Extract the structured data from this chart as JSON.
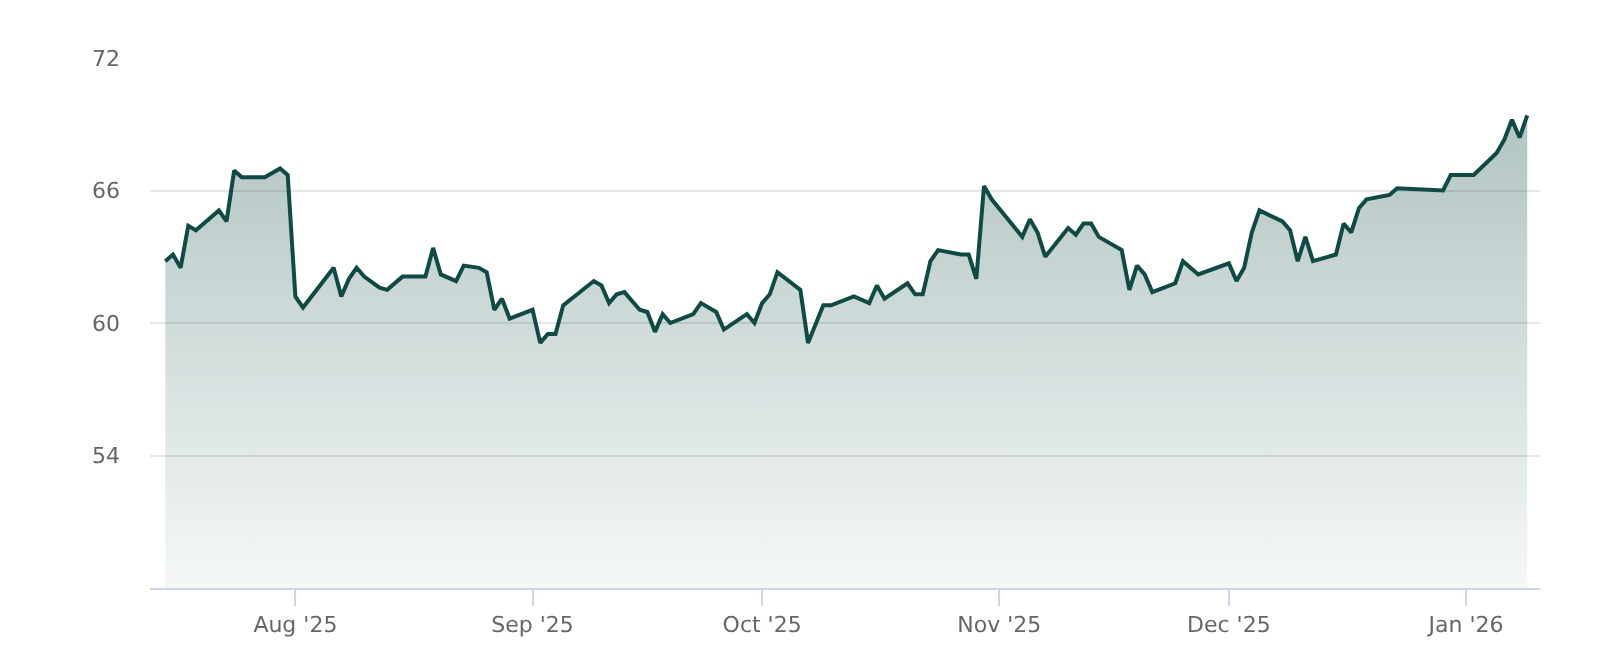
{
  "chart_data": {
    "type": "area",
    "x": [
      "2025-07-15",
      "2025-07-16",
      "2025-07-17",
      "2025-07-18",
      "2025-07-19",
      "2025-07-22",
      "2025-07-23",
      "2025-07-24",
      "2025-07-25",
      "2025-07-28",
      "2025-07-30",
      "2025-07-31",
      "2025-08-01",
      "2025-08-02",
      "2025-08-06",
      "2025-08-07",
      "2025-08-08",
      "2025-08-09",
      "2025-08-10",
      "2025-08-12",
      "2025-08-13",
      "2025-08-15",
      "2025-08-18",
      "2025-08-19",
      "2025-08-20",
      "2025-08-22",
      "2025-08-23",
      "2025-08-25",
      "2025-08-26",
      "2025-08-27",
      "2025-08-28",
      "2025-08-29",
      "2025-09-01",
      "2025-09-02",
      "2025-09-03",
      "2025-09-04",
      "2025-09-05",
      "2025-09-09",
      "2025-09-10",
      "2025-09-11",
      "2025-09-12",
      "2025-09-13",
      "2025-09-15",
      "2025-09-16",
      "2025-09-17",
      "2025-09-18",
      "2025-09-19",
      "2025-09-22",
      "2025-09-23",
      "2025-09-25",
      "2025-09-26",
      "2025-09-29",
      "2025-09-30",
      "2025-10-01",
      "2025-10-02",
      "2025-10-03",
      "2025-10-06",
      "2025-10-07",
      "2025-10-09",
      "2025-10-10",
      "2025-10-13",
      "2025-10-15",
      "2025-10-16",
      "2025-10-17",
      "2025-10-20",
      "2025-10-21",
      "2025-10-22",
      "2025-10-23",
      "2025-10-24",
      "2025-10-27",
      "2025-10-28",
      "2025-10-29",
      "2025-10-30",
      "2025-10-31",
      "2025-11-04",
      "2025-11-05",
      "2025-11-06",
      "2025-11-07",
      "2025-11-10",
      "2025-11-11",
      "2025-11-12",
      "2025-11-13",
      "2025-11-14",
      "2025-11-17",
      "2025-11-18",
      "2025-11-19",
      "2025-11-20",
      "2025-11-21",
      "2025-11-24",
      "2025-11-25",
      "2025-11-27",
      "2025-12-01",
      "2025-12-02",
      "2025-12-03",
      "2025-12-04",
      "2025-12-05",
      "2025-12-08",
      "2025-12-09",
      "2025-12-10",
      "2025-12-11",
      "2025-12-12",
      "2025-12-15",
      "2025-12-16",
      "2025-12-17",
      "2025-12-18",
      "2025-12-19",
      "2025-12-22",
      "2025-12-23",
      "2025-12-29",
      "2025-12-30",
      "2026-01-02",
      "2026-01-05",
      "2026-01-06",
      "2026-01-07",
      "2026-01-08",
      "2026-01-09"
    ],
    "series": [
      {
        "color": "#0f4a45",
        "values": [
          62.8,
          63.1,
          62.5,
          64.4,
          64.2,
          65.1,
          64.6,
          66.9,
          66.6,
          66.6,
          67.0,
          66.7,
          61.2,
          60.7,
          62.5,
          61.2,
          62.0,
          62.5,
          62.1,
          61.6,
          61.5,
          62.1,
          62.1,
          63.4,
          62.2,
          61.9,
          62.6,
          62.5,
          62.3,
          60.6,
          61.1,
          60.2,
          60.6,
          59.1,
          59.5,
          59.5,
          60.8,
          61.9,
          61.7,
          60.9,
          61.3,
          61.4,
          60.6,
          60.5,
          59.6,
          60.4,
          60.0,
          60.4,
          60.9,
          60.5,
          59.7,
          60.4,
          60.0,
          60.9,
          61.3,
          62.3,
          61.5,
          59.1,
          60.8,
          60.8,
          61.2,
          60.9,
          61.7,
          61.1,
          61.8,
          61.3,
          61.3,
          62.8,
          63.3,
          63.1,
          63.1,
          62.0,
          66.2,
          65.6,
          63.9,
          64.7,
          64.1,
          63.0,
          64.3,
          64.0,
          64.5,
          64.5,
          63.9,
          63.3,
          61.5,
          62.6,
          62.2,
          61.4,
          61.8,
          62.8,
          62.2,
          62.7,
          61.9,
          62.5,
          64.1,
          65.1,
          64.6,
          64.2,
          62.8,
          63.9,
          62.8,
          63.1,
          64.5,
          64.1,
          65.2,
          65.6,
          65.8,
          66.1,
          66.0,
          66.7,
          66.7,
          67.7,
          68.3,
          69.2,
          68.4,
          69.4
        ]
      }
    ],
    "xlim": [
      "2025-07-13",
      "2026-01-10T16:00"
    ],
    "xticks": [
      {
        "value": "2025-08-01",
        "label": "Aug '25"
      },
      {
        "value": "2025-09-01",
        "label": "Sep '25"
      },
      {
        "value": "2025-10-01",
        "label": "Oct '25"
      },
      {
        "value": "2025-11-01",
        "label": "Nov '25"
      },
      {
        "value": "2025-12-01",
        "label": "Dec '25"
      },
      {
        "value": "2026-01-01",
        "label": "Jan '26"
      }
    ],
    "ylim": [
      48,
      72
    ],
    "yticks": [
      54,
      60,
      66,
      72
    ],
    "grid": "y",
    "marker": "none",
    "line_style": "solid"
  }
}
